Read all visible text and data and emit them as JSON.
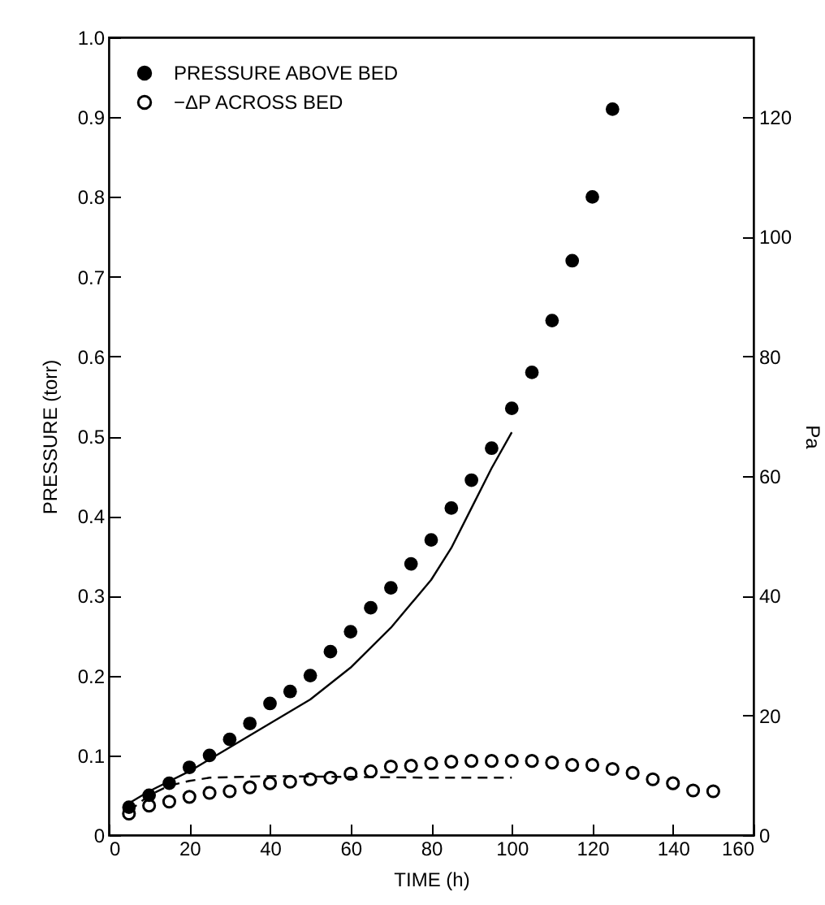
{
  "chart_data": {
    "type": "scatter",
    "xlabel": "TIME (h)",
    "ylabel": "PRESSURE (torr)",
    "y2label": "Pa",
    "legend": "top left",
    "grid": false,
    "marker": "circle",
    "xlim": [
      0,
      160
    ],
    "xticks": [
      0,
      20,
      40,
      60,
      80,
      100,
      120,
      140,
      160
    ],
    "ylim": [
      0,
      1
    ],
    "yticks": [
      {
        "value": 0,
        "label": "0"
      },
      {
        "value": 0.1,
        "label": "0.1"
      },
      {
        "value": 0.2,
        "label": "0.2"
      },
      {
        "value": 0.3,
        "label": "0.3"
      },
      {
        "value": 0.4,
        "label": "0.4"
      },
      {
        "value": 0.5,
        "label": "0.5"
      },
      {
        "value": 0.6,
        "label": "0.6"
      },
      {
        "value": 0.7,
        "label": "0.7"
      },
      {
        "value": 0.8,
        "label": "0.8"
      },
      {
        "value": 0.9,
        "label": "0.9"
      },
      {
        "value": 1,
        "label": "1.0"
      }
    ],
    "y2lim": [
      0,
      133.3
    ],
    "y2ticks": [
      0,
      20,
      40,
      60,
      80,
      100,
      120
    ],
    "series": [
      {
        "name": "PRESSURE ABOVE BED",
        "color": "#000000",
        "x": [
          5,
          10,
          15,
          20,
          25,
          30,
          35,
          40,
          45,
          50,
          55,
          60,
          65,
          70,
          75,
          80,
          85,
          90,
          95,
          100,
          105,
          110,
          115,
          120,
          125
        ],
        "values": [
          0.035,
          0.05,
          0.065,
          0.085,
          0.1,
          0.12,
          0.14,
          0.165,
          0.18,
          0.2,
          0.23,
          0.255,
          0.285,
          0.31,
          0.34,
          0.37,
          0.41,
          0.445,
          0.485,
          0.535,
          0.58,
          0.645,
          0.72,
          0.8,
          0.91
        ]
      },
      {
        "type": "line",
        "marker": "none",
        "line_style": "solid",
        "color": "#000000",
        "x": [
          5,
          10,
          20,
          30,
          40,
          50,
          60,
          70,
          80,
          85,
          90,
          95,
          100
        ],
        "values": [
          0.04,
          0.055,
          0.08,
          0.11,
          0.14,
          0.17,
          0.21,
          0.26,
          0.32,
          0.36,
          0.41,
          0.46,
          0.505
        ]
      },
      {
        "name": "−ΔP ACROSS BED",
        "color": "#000000",
        "x": [
          5,
          10,
          15,
          20,
          25,
          30,
          35,
          40,
          45,
          50,
          55,
          60,
          65,
          70,
          75,
          80,
          85,
          90,
          95,
          100,
          105,
          110,
          115,
          120,
          125,
          130,
          135,
          140,
          145,
          150
        ],
        "values": [
          0.027,
          0.037,
          0.042,
          0.048,
          0.053,
          0.055,
          0.06,
          0.065,
          0.067,
          0.07,
          0.072,
          0.077,
          0.08,
          0.086,
          0.087,
          0.09,
          0.092,
          0.093,
          0.093,
          0.093,
          0.093,
          0.091,
          0.088,
          0.088,
          0.083,
          0.078,
          0.07,
          0.065,
          0.056,
          0.055
        ]
      },
      {
        "type": "line",
        "marker": "none",
        "line_style": "dashed",
        "color": "#000000",
        "x": [
          5,
          10,
          15,
          20,
          25,
          40,
          60,
          80,
          100
        ],
        "values": [
          0.03,
          0.05,
          0.062,
          0.068,
          0.072,
          0.074,
          0.073,
          0.072,
          0.072
        ]
      }
    ]
  }
}
